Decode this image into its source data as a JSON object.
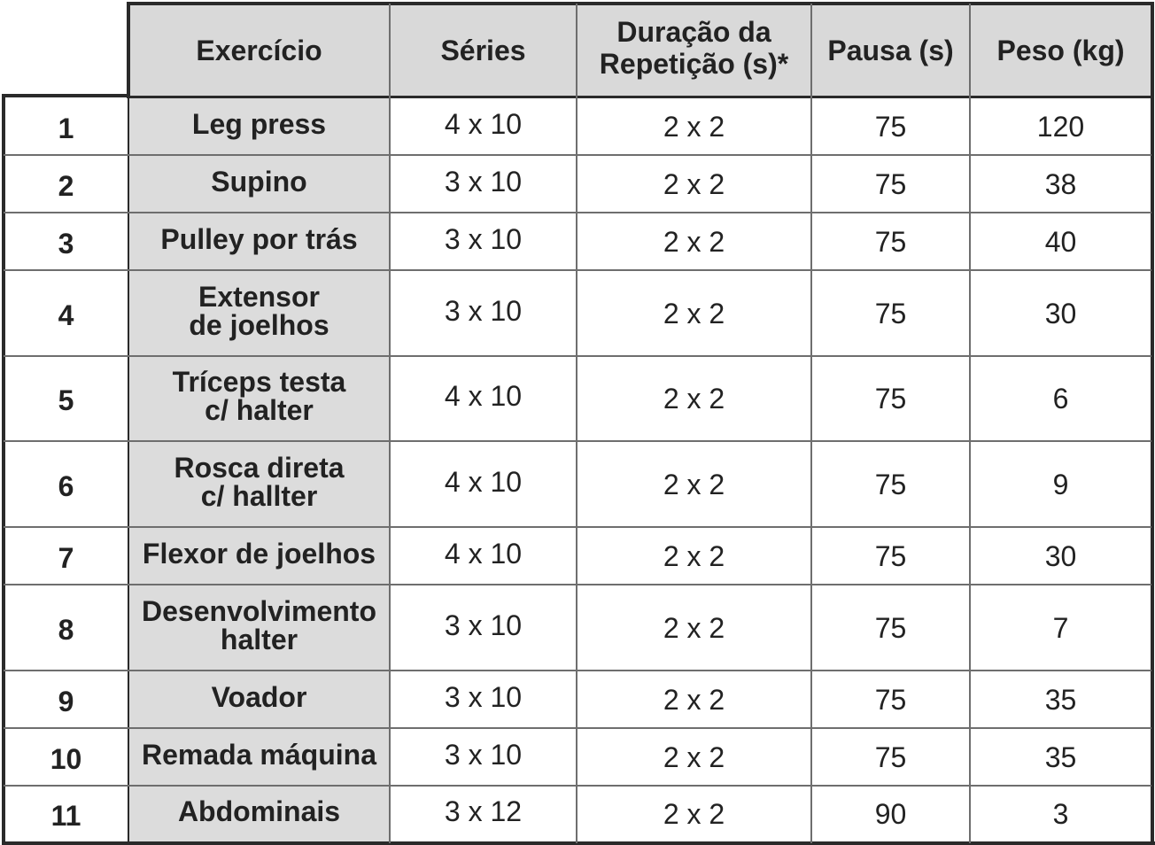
{
  "table": {
    "headers": [
      "Exercício",
      "Séries",
      "Duração da\nRepetição (s)*",
      "Pausa (s)",
      "Peso (kg)"
    ],
    "rows": [
      {
        "n": "1",
        "exercicio": "Leg press",
        "series": "4 x 10",
        "duracao": "2 x 2",
        "pausa": "75",
        "peso": "120"
      },
      {
        "n": "2",
        "exercicio": "Supino",
        "series": "3 x 10",
        "duracao": "2 x 2",
        "pausa": "75",
        "peso": "38"
      },
      {
        "n": "3",
        "exercicio": "Pulley por trás",
        "series": "3 x 10",
        "duracao": "2 x 2",
        "pausa": "75",
        "peso": "40"
      },
      {
        "n": "4",
        "exercicio": "Extensor\nde joelhos",
        "series": "3 x 10",
        "duracao": "2 x 2",
        "pausa": "75",
        "peso": "30"
      },
      {
        "n": "5",
        "exercicio": "Tríceps testa\nc/ halter",
        "series": "4 x 10",
        "duracao": "2 x 2",
        "pausa": "75",
        "peso": "6"
      },
      {
        "n": "6",
        "exercicio": "Rosca direta\nc/ hallter",
        "series": "4 x 10",
        "duracao": "2 x 2",
        "pausa": "75",
        "peso": "9"
      },
      {
        "n": "7",
        "exercicio": "Flexor de joelhos",
        "series": "4 x 10",
        "duracao": "2 x 2",
        "pausa": "75",
        "peso": "30"
      },
      {
        "n": "8",
        "exercicio": "Desenvolvimento\nhalter",
        "series": "3 x 10",
        "duracao": "2 x 2",
        "pausa": "75",
        "peso": "7"
      },
      {
        "n": "9",
        "exercicio": "Voador",
        "series": "3 x 10",
        "duracao": "2 x 2",
        "pausa": "75",
        "peso": "35"
      },
      {
        "n": "10",
        "exercicio": "Remada máquina",
        "series": "3 x 10",
        "duracao": "2 x 2",
        "pausa": "75",
        "peso": "35"
      },
      {
        "n": "11",
        "exercicio": "Abdominais",
        "series": "3 x 12",
        "duracao": "2 x 2",
        "pausa": "90",
        "peso": "3"
      }
    ]
  }
}
